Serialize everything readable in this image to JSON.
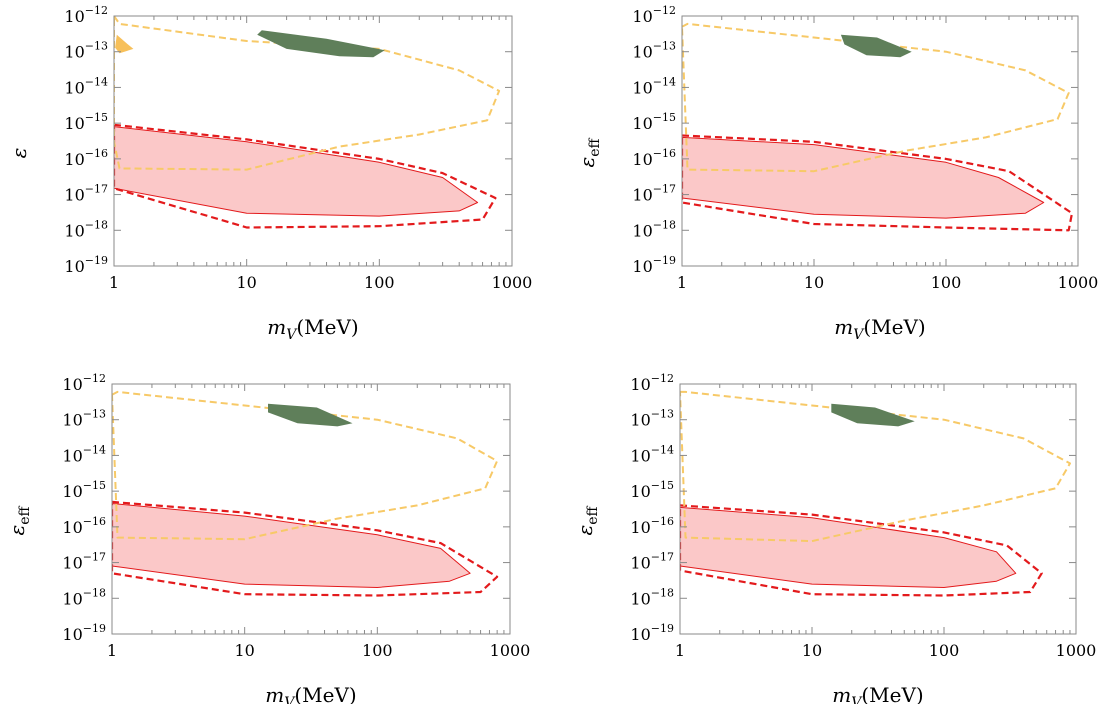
{
  "figure": {
    "panels_count": 4,
    "colors": {
      "excluded_fill": "#fbc8c8",
      "excluded_line": "#e31a1c",
      "projection_dashed": "#e31a1c",
      "orange_dashed": "#f7c967",
      "orange_fill": "#f7c05a",
      "green_fill": "#5f7f5a",
      "frame": "#8a8a8a"
    }
  },
  "chart_data": [
    {
      "type": "area",
      "panel": "top-left",
      "xscale": "log",
      "yscale": "log",
      "xlim": [
        1,
        1000
      ],
      "ylim": [
        1e-19,
        1e-12
      ],
      "xlabel": "m_V(MeV)",
      "ylabel": "ε",
      "xticks": [
        "1",
        "10",
        "100",
        "1000"
      ],
      "yticks": [
        "10^-12",
        "10^-13",
        "10^-14",
        "10^-15",
        "10^-16",
        "10^-17",
        "10^-18",
        "10^-19"
      ],
      "series": [
        {
          "style": "filled-red-solid",
          "points": [
            [
              1,
              8e-16
            ],
            [
              10,
              3e-16
            ],
            [
              100,
              8e-17
            ],
            [
              300,
              3e-17
            ],
            [
              550,
              6e-18
            ],
            [
              400,
              3.5e-18
            ],
            [
              100,
              2.5e-18
            ],
            [
              10,
              3e-18
            ],
            [
              1,
              1.5e-17
            ]
          ]
        },
        {
          "style": "red-dashed",
          "points": [
            [
              1,
              9e-16
            ],
            [
              10,
              3.5e-16
            ],
            [
              100,
              1e-16
            ],
            [
              300,
              4e-17
            ],
            [
              750,
              8e-18
            ],
            [
              600,
              2e-18
            ],
            [
              100,
              1.3e-18
            ],
            [
              10,
              1.2e-18
            ],
            [
              1,
              1.5e-17
            ]
          ]
        },
        {
          "style": "orange-dashed",
          "points": [
            [
              1,
              1e-12
            ],
            [
              1.1,
              6e-13
            ],
            [
              10,
              2e-13
            ],
            [
              100,
              1.2e-13
            ],
            [
              400,
              3e-14
            ],
            [
              800,
              8e-15
            ],
            [
              650,
              1.2e-15
            ],
            [
              200,
              4.8e-16
            ],
            [
              50,
              2.2e-16
            ],
            [
              10,
              5e-17
            ],
            [
              1.1,
              5.4e-17
            ],
            [
              1,
              3e-16
            ],
            [
              1,
              1e-12
            ]
          ]
        },
        {
          "style": "orange-fill",
          "points": [
            [
              1.05,
              3e-13
            ],
            [
              1.3,
              1.5e-13
            ],
            [
              1.4,
              1.2e-13
            ],
            [
              1.1,
              9e-14
            ],
            [
              1.02,
              1.3e-13
            ]
          ]
        },
        {
          "style": "green-fill",
          "points": [
            [
              13,
              4e-13
            ],
            [
              40,
              2.3e-13
            ],
            [
              110,
              1.1e-13
            ],
            [
              90,
              7e-14
            ],
            [
              50,
              7.5e-14
            ],
            [
              20,
              1.2e-13
            ],
            [
              12,
              3e-13
            ]
          ]
        }
      ]
    },
    {
      "type": "area",
      "panel": "top-right",
      "xscale": "log",
      "yscale": "log",
      "xlim": [
        1,
        1000
      ],
      "ylim": [
        1e-19,
        1e-12
      ],
      "xlabel": "m_V(MeV)",
      "ylabel": "ε_eff",
      "xticks": [
        "1",
        "10",
        "100",
        "1000"
      ],
      "yticks": [
        "10^-12",
        "10^-13",
        "10^-14",
        "10^-15",
        "10^-16",
        "10^-17",
        "10^-18",
        "10^-19"
      ],
      "series": [
        {
          "style": "filled-red-solid",
          "points": [
            [
              1,
              4e-16
            ],
            [
              10,
              2.5e-16
            ],
            [
              100,
              8e-17
            ],
            [
              250,
              3e-17
            ],
            [
              550,
              6e-18
            ],
            [
              400,
              3e-18
            ],
            [
              100,
              2.2e-18
            ],
            [
              10,
              2.8e-18
            ],
            [
              1,
              8e-18
            ]
          ]
        },
        {
          "style": "red-dashed",
          "points": [
            [
              1,
              4.5e-16
            ],
            [
              10,
              3e-16
            ],
            [
              100,
              1e-16
            ],
            [
              300,
              4.5e-17
            ],
            [
              900,
              3e-18
            ],
            [
              850,
              1e-18
            ],
            [
              100,
              1.2e-18
            ],
            [
              10,
              1.5e-18
            ],
            [
              1,
              6e-18
            ]
          ]
        },
        {
          "style": "orange-dashed",
          "points": [
            [
              1,
              5e-13
            ],
            [
              1.1,
              6e-13
            ],
            [
              10,
              2.5e-13
            ],
            [
              100,
              1e-13
            ],
            [
              400,
              3e-14
            ],
            [
              850,
              7e-15
            ],
            [
              700,
              1.3e-15
            ],
            [
              200,
              4e-16
            ],
            [
              50,
              1.7e-16
            ],
            [
              10,
              4.5e-17
            ],
            [
              1.1,
              5e-17
            ],
            [
              1,
              5e-13
            ]
          ]
        },
        {
          "style": "green-fill",
          "points": [
            [
              16,
              3e-13
            ],
            [
              30,
              2.5e-13
            ],
            [
              55,
              1e-13
            ],
            [
              45,
              7e-14
            ],
            [
              25,
              8e-14
            ],
            [
              17,
              1.6e-13
            ]
          ]
        }
      ]
    },
    {
      "type": "area",
      "panel": "bottom-left",
      "xscale": "log",
      "yscale": "log",
      "xlim": [
        1,
        1000
      ],
      "ylim": [
        1e-19,
        1e-12
      ],
      "xlabel": "m_V(MeV)",
      "ylabel": "ε_eff",
      "xticks": [
        "1",
        "10",
        "100",
        "1000"
      ],
      "yticks": [
        "10^-12",
        "10^-13",
        "10^-14",
        "10^-15",
        "10^-16",
        "10^-17",
        "10^-18",
        "10^-19"
      ],
      "series": [
        {
          "style": "filled-red-solid",
          "points": [
            [
              1,
              4.5e-16
            ],
            [
              10,
              2e-16
            ],
            [
              100,
              6e-17
            ],
            [
              300,
              2.5e-17
            ],
            [
              500,
              5e-18
            ],
            [
              350,
              3e-18
            ],
            [
              100,
              2e-18
            ],
            [
              10,
              2.5e-18
            ],
            [
              1,
              8e-18
            ]
          ]
        },
        {
          "style": "red-dashed",
          "points": [
            [
              1,
              5e-16
            ],
            [
              10,
              2.5e-16
            ],
            [
              100,
              8e-17
            ],
            [
              300,
              3.5e-17
            ],
            [
              800,
              4e-18
            ],
            [
              600,
              1.5e-18
            ],
            [
              100,
              1.2e-18
            ],
            [
              10,
              1.3e-18
            ],
            [
              1,
              5e-18
            ]
          ]
        },
        {
          "style": "orange-dashed",
          "points": [
            [
              1,
              5e-13
            ],
            [
              1.1,
              6e-13
            ],
            [
              10,
              2.5e-13
            ],
            [
              100,
              1e-13
            ],
            [
              400,
              3e-14
            ],
            [
              800,
              7e-15
            ],
            [
              650,
              1.2e-15
            ],
            [
              200,
              4e-16
            ],
            [
              50,
              1.7e-16
            ],
            [
              10,
              4.5e-17
            ],
            [
              1.1,
              5e-17
            ],
            [
              1,
              5e-13
            ]
          ]
        },
        {
          "style": "green-fill",
          "points": [
            [
              15,
              2.8e-13
            ],
            [
              35,
              2.2e-13
            ],
            [
              65,
              8e-14
            ],
            [
              50,
              6.5e-14
            ],
            [
              25,
              8e-14
            ],
            [
              15,
              1.6e-13
            ]
          ]
        }
      ]
    },
    {
      "type": "area",
      "panel": "bottom-right",
      "xscale": "log",
      "yscale": "log",
      "xlim": [
        1,
        1000
      ],
      "ylim": [
        1e-19,
        1e-12
      ],
      "xlabel": "m_V(MeV)",
      "ylabel": "ε_eff",
      "xticks": [
        "1",
        "10",
        "100",
        "1000"
      ],
      "yticks": [
        "10^-12",
        "10^-13",
        "10^-14",
        "10^-15",
        "10^-16",
        "10^-17",
        "10^-18",
        "10^-19"
      ],
      "series": [
        {
          "style": "filled-red-solid",
          "points": [
            [
              1,
              3.5e-16
            ],
            [
              10,
              1.8e-16
            ],
            [
              100,
              5e-17
            ],
            [
              250,
              2e-17
            ],
            [
              350,
              5e-18
            ],
            [
              250,
              3e-18
            ],
            [
              100,
              2e-18
            ],
            [
              10,
              2.5e-18
            ],
            [
              1,
              8e-18
            ]
          ]
        },
        {
          "style": "red-dashed",
          "points": [
            [
              1,
              4e-16
            ],
            [
              10,
              2.2e-16
            ],
            [
              100,
              7e-17
            ],
            [
              300,
              3e-17
            ],
            [
              550,
              5e-18
            ],
            [
              450,
              1.5e-18
            ],
            [
              100,
              1.2e-18
            ],
            [
              10,
              1.3e-18
            ],
            [
              1,
              6e-18
            ]
          ]
        },
        {
          "style": "orange-dashed",
          "points": [
            [
              1,
              6e-13
            ],
            [
              1.1,
              6e-13
            ],
            [
              10,
              2.5e-13
            ],
            [
              100,
              1e-13
            ],
            [
              400,
              3e-14
            ],
            [
              900,
              6e-15
            ],
            [
              700,
              1.2e-15
            ],
            [
              200,
              4e-16
            ],
            [
              50,
              1.5e-16
            ],
            [
              10,
              4e-17
            ],
            [
              1.1,
              5e-17
            ],
            [
              1,
              6e-13
            ]
          ]
        },
        {
          "style": "green-fill",
          "points": [
            [
              14,
              2.8e-13
            ],
            [
              30,
              2.2e-13
            ],
            [
              60,
              9e-14
            ],
            [
              45,
              6.5e-14
            ],
            [
              22,
              8e-14
            ],
            [
              14,
              1.6e-13
            ]
          ]
        }
      ]
    }
  ]
}
